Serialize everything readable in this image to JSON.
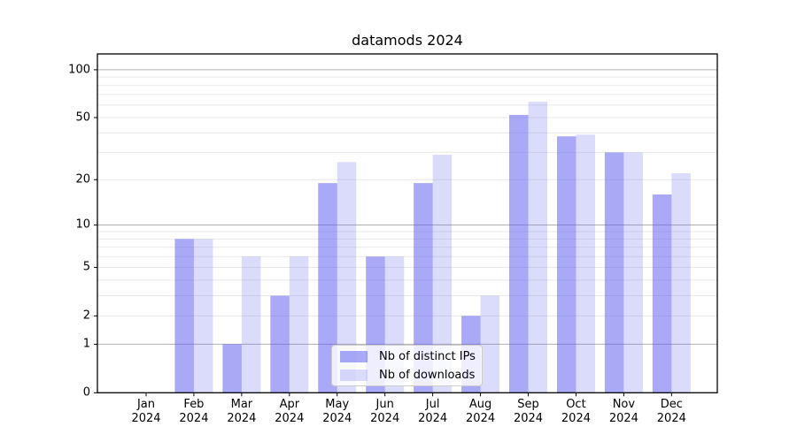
{
  "chart_data": {
    "type": "bar",
    "title": "datamods 2024",
    "categories": [
      "Jan 2024",
      "Feb 2024",
      "Mar 2024",
      "Apr 2024",
      "May 2024",
      "Jun 2024",
      "Jul 2024",
      "Aug 2024",
      "Sep 2024",
      "Oct 2024",
      "Nov 2024",
      "Dec 2024"
    ],
    "series": [
      {
        "name": "Nb of distinct IPs",
        "color": "rgba(90,90,240,0.52)",
        "values": [
          0,
          8,
          1,
          3,
          19,
          6,
          19,
          2,
          52,
          38,
          30,
          16
        ]
      },
      {
        "name": "Nb of downloads",
        "color": "rgba(90,90,240,0.22)",
        "values": [
          0,
          8,
          6,
          6,
          26,
          6,
          29,
          3,
          63,
          39,
          30,
          22
        ]
      }
    ],
    "xlabel": "",
    "ylabel": "",
    "yscale": "log(1+y)",
    "yticks": [
      0,
      1,
      2,
      5,
      10,
      20,
      50,
      100
    ],
    "minor_grid_values": [
      2,
      3,
      4,
      5,
      6,
      7,
      8,
      9,
      20,
      30,
      40,
      50,
      60,
      70,
      80,
      90
    ],
    "major_grid_values": [
      1,
      10,
      100
    ],
    "ylim": [
      0,
      125
    ],
    "grid": true,
    "legend_position": "lower center",
    "colors": {
      "axis": "#000000",
      "major_grid": "#b0b0b0",
      "minor_grid": "#e9e9e9",
      "legend_bg": "rgba(255,255,255,0.8)",
      "legend_border": "#cccccc",
      "background": "#ffffff"
    }
  }
}
